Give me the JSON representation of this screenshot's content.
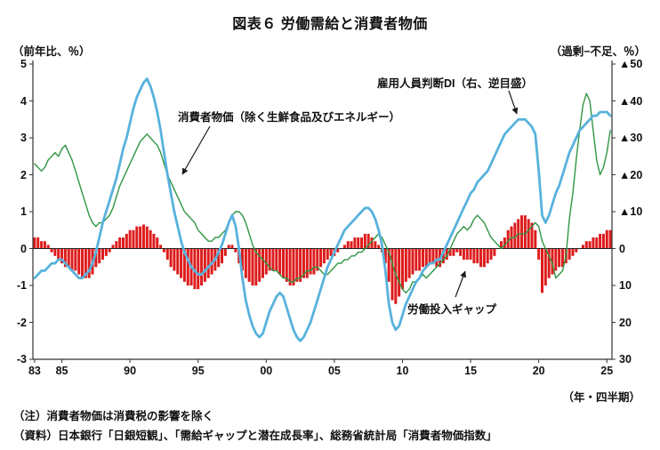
{
  "title": "図表６ 労働需給と消費者物価",
  "axis": {
    "left_label": "（前年比、％）",
    "right_label": "（過剰−不足、％）",
    "x_unit_label": "（年・四半期）",
    "left_ticks": [
      "5",
      "4",
      "3",
      "2",
      "1",
      "0",
      "-1",
      "-2",
      "-3"
    ],
    "right_ticks": [
      "▲50",
      "▲40",
      "▲30",
      "▲20",
      "▲10",
      "0",
      "10",
      "20",
      "30"
    ],
    "x_ticks": [
      "83",
      "85",
      "90",
      "95",
      "00",
      "05",
      "10",
      "15",
      "20",
      "25"
    ]
  },
  "annotations": {
    "di_label": "雇用人員判断DI（右、逆目盛）",
    "cpi_label": "消費者物価（除く生鮮食品及びエネルギー）",
    "gap_label": "労働投入ギャップ"
  },
  "notes": {
    "note": "（注）消費者物価は消費税の影響を除く",
    "source": "（資料）日本銀行「日銀短観」、「需給ギャップと潜在成長率」、総務省統計局「消費者物価指数」"
  },
  "colors": {
    "bar": "#dd1c1c",
    "cpi_line": "#2f9643",
    "di_line": "#58b2dc",
    "axis": "#333333",
    "text": "#111111"
  },
  "chart_data": {
    "type": "combo",
    "title": "図表６ 労働需給と消費者物価",
    "x": {
      "start_year": 1983,
      "step_years": 0.25,
      "points": 170,
      "end": "2025Q2",
      "tick_years": [
        1983,
        1985,
        1990,
        1995,
        2000,
        2005,
        2010,
        2015,
        2020,
        2025
      ]
    },
    "left_axis": {
      "label": "（前年比、％）",
      "min": -3,
      "max": 5,
      "ticks": [
        5,
        4,
        3,
        2,
        1,
        0,
        -1,
        -2,
        -3
      ]
    },
    "right_axis": {
      "label": "（過剰−不足、％）",
      "min": -50,
      "max": 30,
      "inverted_display": true,
      "ticks": [
        -50,
        -40,
        -30,
        -20,
        -10,
        0,
        10,
        20,
        30
      ]
    },
    "grid": false,
    "legend": "in-plot annotations with arrows",
    "series": [
      {
        "name": "労働投入ギャップ",
        "type": "bar",
        "axis": "left",
        "color": "#dd1c1c",
        "values": [
          0.3,
          0.3,
          0.2,
          0.2,
          0.1,
          -0.1,
          -0.2,
          -0.3,
          -0.4,
          -0.5,
          -0.5,
          -0.6,
          -0.6,
          -0.7,
          -0.8,
          -0.8,
          -0.8,
          -0.7,
          -0.5,
          -0.4,
          -0.3,
          -0.2,
          -0.1,
          0.1,
          0.2,
          0.3,
          0.3,
          0.4,
          0.5,
          0.5,
          0.6,
          0.6,
          0.65,
          0.6,
          0.5,
          0.4,
          0.3,
          0.1,
          -0.1,
          -0.3,
          -0.5,
          -0.6,
          -0.7,
          -0.8,
          -0.9,
          -1.0,
          -1.0,
          -1.1,
          -1.1,
          -1.0,
          -0.9,
          -0.8,
          -0.7,
          -0.6,
          -0.5,
          -0.4,
          -0.2,
          0.1,
          0.1,
          -0.1,
          -0.4,
          -0.6,
          -0.8,
          -0.9,
          -1.0,
          -1.0,
          -0.9,
          -0.8,
          -0.7,
          -0.6,
          -0.6,
          -0.6,
          -0.7,
          -0.8,
          -0.9,
          -1.0,
          -1.0,
          -0.9,
          -0.9,
          -0.8,
          -0.8,
          -0.7,
          -0.7,
          -0.6,
          -0.5,
          -0.4,
          -0.3,
          -0.2,
          -0.2,
          -0.1,
          0.0,
          0.1,
          0.2,
          0.2,
          0.3,
          0.3,
          0.3,
          0.4,
          0.4,
          0.3,
          0.2,
          0.1,
          -0.1,
          -0.4,
          -0.9,
          -1.4,
          -1.5,
          -1.3,
          -1.1,
          -0.9,
          -0.8,
          -0.7,
          -0.6,
          -0.6,
          -0.5,
          -0.5,
          -0.4,
          -0.4,
          -0.5,
          -0.5,
          -0.4,
          -0.3,
          -0.2,
          -0.2,
          -0.1,
          -0.2,
          -0.3,
          -0.3,
          -0.3,
          -0.4,
          -0.4,
          -0.5,
          -0.5,
          -0.4,
          -0.3,
          -0.2,
          0.0,
          0.2,
          0.3,
          0.5,
          0.6,
          0.7,
          0.8,
          0.9,
          0.9,
          0.8,
          0.7,
          0.5,
          -0.3,
          -1.2,
          -1.0,
          -0.8,
          -0.7,
          -0.6,
          -0.5,
          -0.5,
          -0.4,
          -0.3,
          -0.2,
          -0.1,
          0.0,
          0.1,
          0.2,
          0.2,
          0.3,
          0.3,
          0.4,
          0.4,
          0.5,
          0.5
        ]
      },
      {
        "name": "消費者物価（除く生鮮食品及びエネルギー）",
        "type": "line",
        "axis": "left",
        "color": "#2f9643",
        "values": [
          2.3,
          2.2,
          2.1,
          2.2,
          2.4,
          2.5,
          2.6,
          2.5,
          2.7,
          2.8,
          2.6,
          2.4,
          2.1,
          1.8,
          1.5,
          1.2,
          0.9,
          0.7,
          0.6,
          0.7,
          0.7,
          0.8,
          0.9,
          1.1,
          1.4,
          1.7,
          1.9,
          2.1,
          2.3,
          2.5,
          2.7,
          2.9,
          3.0,
          3.1,
          3.0,
          2.9,
          2.8,
          2.6,
          2.3,
          2.0,
          1.8,
          1.6,
          1.4,
          1.2,
          1.0,
          0.9,
          0.8,
          0.7,
          0.5,
          0.4,
          0.3,
          0.2,
          0.2,
          0.3,
          0.3,
          0.4,
          0.5,
          0.7,
          0.9,
          1.0,
          1.0,
          0.9,
          0.7,
          0.4,
          0.1,
          -0.1,
          -0.2,
          -0.3,
          -0.4,
          -0.5,
          -0.6,
          -0.6,
          -0.7,
          -0.8,
          -0.8,
          -0.9,
          -0.9,
          -0.8,
          -0.8,
          -0.7,
          -0.6,
          -0.6,
          -0.5,
          -0.5,
          -0.6,
          -0.7,
          -0.7,
          -0.6,
          -0.5,
          -0.4,
          -0.4,
          -0.3,
          -0.3,
          -0.2,
          -0.2,
          -0.1,
          -0.1,
          0.0,
          0.1,
          0.2,
          0.3,
          0.4,
          0.3,
          0.1,
          -0.1,
          -0.4,
          -0.7,
          -0.9,
          -1.1,
          -1.2,
          -1.1,
          -0.9,
          -0.9,
          -0.8,
          -0.7,
          -0.8,
          -0.7,
          -0.6,
          -0.5,
          -0.4,
          -0.3,
          -0.2,
          0.0,
          0.2,
          0.4,
          0.5,
          0.6,
          0.5,
          0.6,
          0.8,
          0.9,
          0.8,
          0.7,
          0.5,
          0.3,
          0.2,
          0.1,
          0.0,
          0.1,
          0.2,
          0.3,
          0.3,
          0.4,
          0.4,
          0.4,
          0.5,
          0.6,
          0.7,
          0.6,
          0.2,
          0.0,
          -0.2,
          -0.4,
          -0.8,
          -0.7,
          -0.6,
          -0.2,
          0.8,
          1.5,
          2.4,
          3.2,
          3.9,
          4.2,
          4.0,
          3.2,
          2.4,
          2.0,
          2.2,
          2.6,
          3.2
        ]
      },
      {
        "name": "雇用人員判断DI（右、逆目盛）",
        "type": "line",
        "axis": "right",
        "color": "#58b2dc",
        "values": [
          8,
          7,
          6,
          6,
          5,
          4,
          4,
          3,
          3,
          4,
          5,
          6,
          7,
          8,
          8,
          7,
          6,
          4,
          1,
          -3,
          -7,
          -10,
          -13,
          -16,
          -19,
          -23,
          -27,
          -30,
          -34,
          -38,
          -41,
          -43,
          -45,
          -46,
          -44,
          -41,
          -37,
          -32,
          -26,
          -20,
          -15,
          -10,
          -6,
          -2,
          1,
          3,
          5,
          6,
          7,
          7,
          6,
          5,
          4,
          3,
          1,
          -1,
          -4,
          -7,
          -9,
          -6,
          0,
          8,
          14,
          18,
          21,
          23,
          24,
          23,
          20,
          17,
          15,
          13,
          12,
          13,
          16,
          19,
          22,
          24,
          25,
          24,
          22,
          20,
          17,
          14,
          11,
          8,
          5,
          3,
          1,
          -1,
          -3,
          -5,
          -6,
          -7,
          -8,
          -9,
          -10,
          -11,
          -11,
          -10,
          -8,
          -5,
          -1,
          6,
          15,
          20,
          22,
          21,
          18,
          15,
          13,
          11,
          9,
          8,
          6,
          5,
          4,
          4,
          3,
          3,
          1,
          -1,
          -3,
          -5,
          -7,
          -9,
          -11,
          -13,
          -15,
          -16,
          -18,
          -19,
          -20,
          -21,
          -23,
          -25,
          -27,
          -29,
          -31,
          -32,
          -33,
          -34,
          -35,
          -35,
          -35,
          -34,
          -33,
          -31,
          -21,
          -9,
          -7,
          -9,
          -12,
          -15,
          -17,
          -20,
          -23,
          -26,
          -28,
          -30,
          -32,
          -33,
          -34,
          -35,
          -36,
          -36,
          -37,
          -37,
          -37,
          -36
        ]
      }
    ]
  }
}
